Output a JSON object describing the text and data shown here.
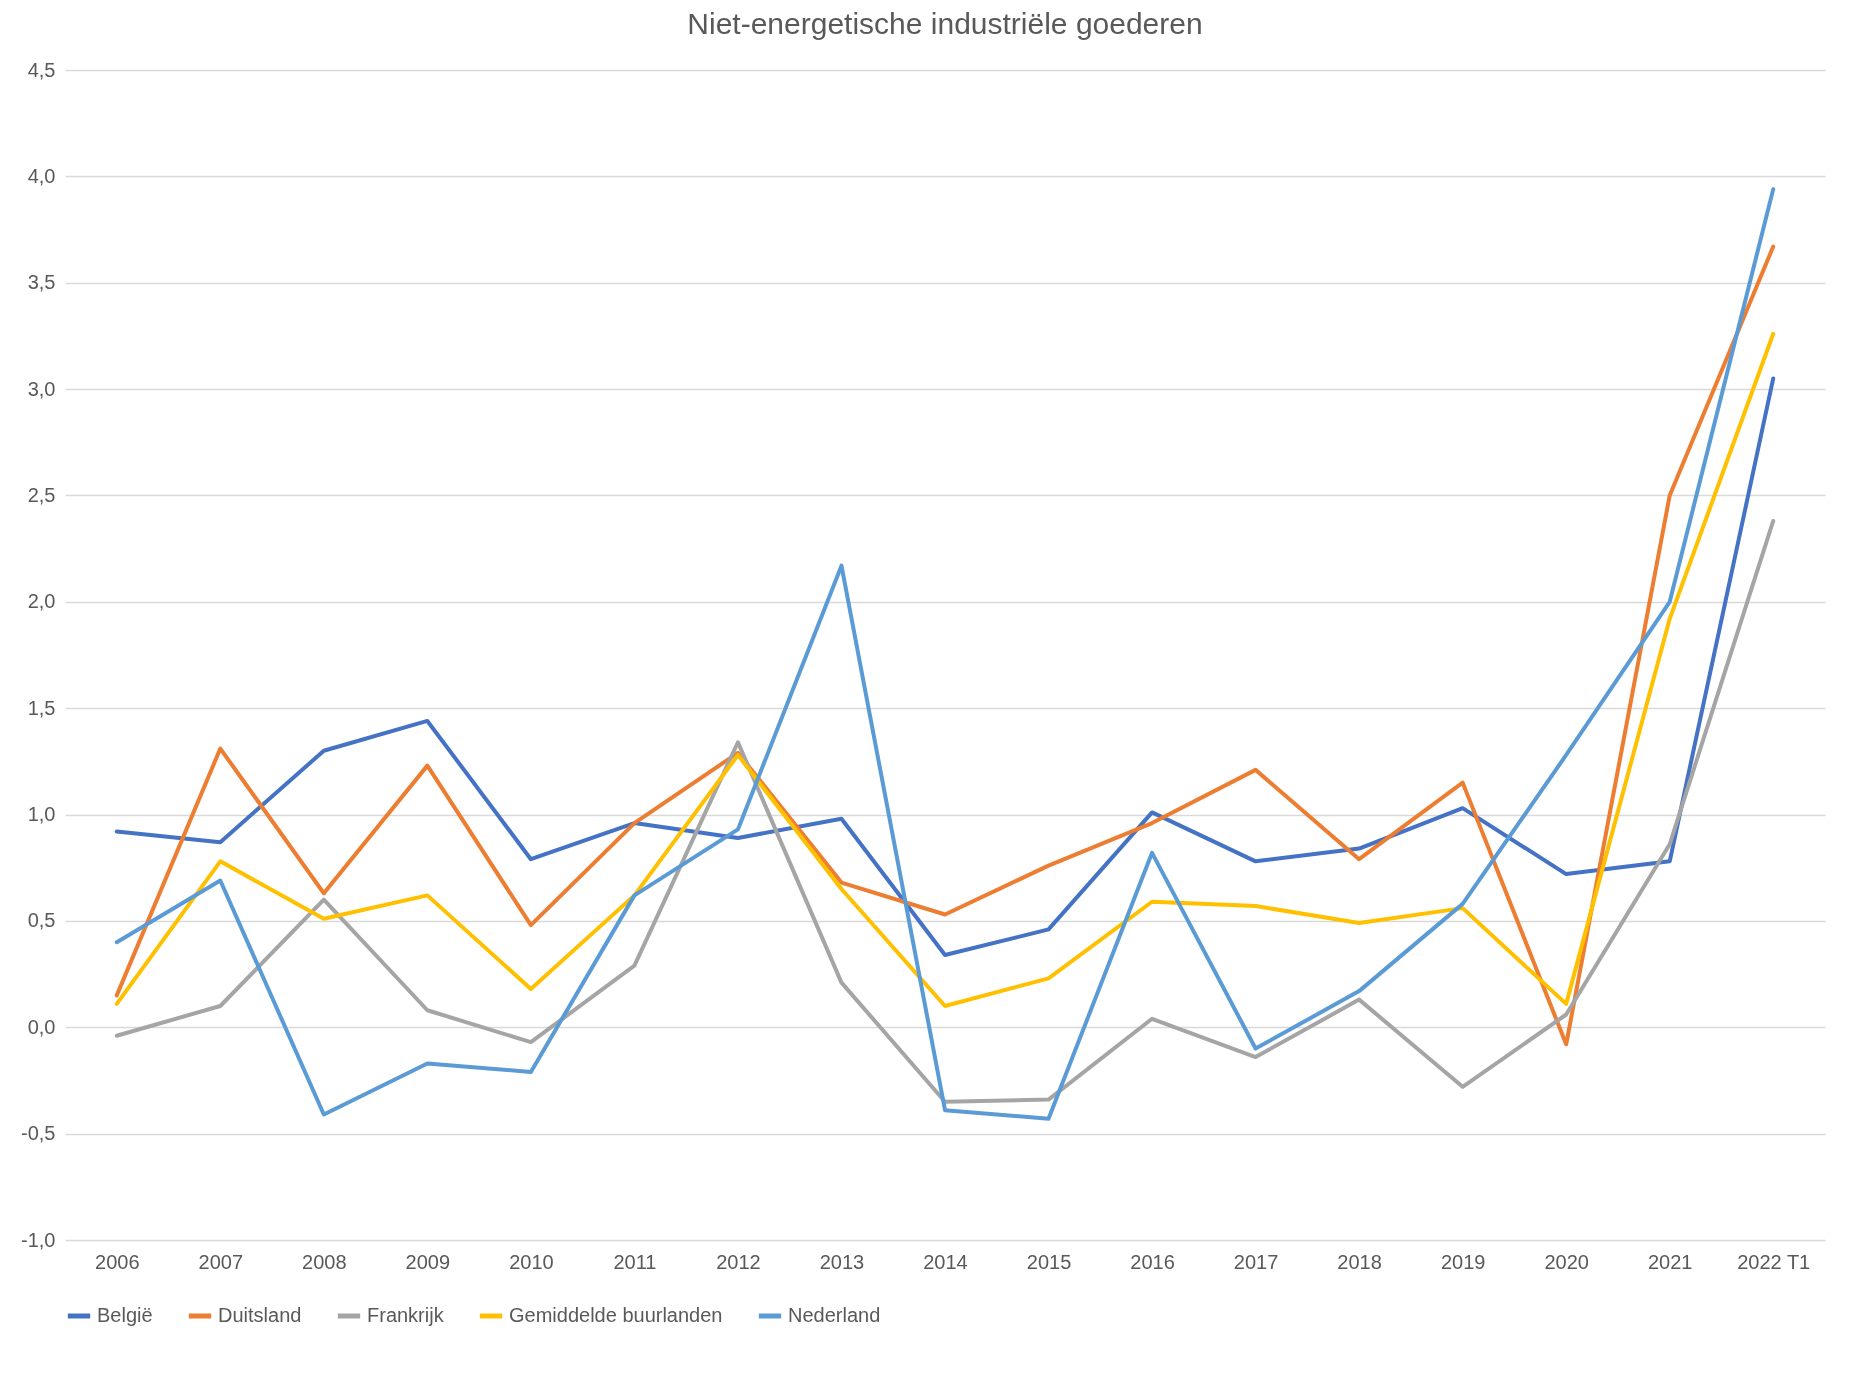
{
  "chart_data": {
    "type": "line",
    "title": "Niet-energetische industriële goederen",
    "categories": [
      "2006",
      "2007",
      "2008",
      "2009",
      "2010",
      "2011",
      "2012",
      "2013",
      "2014",
      "2015",
      "2016",
      "2017",
      "2018",
      "2019",
      "2020",
      "2021",
      "2022 T1"
    ],
    "series": [
      {
        "name": "België",
        "color": "#4472c4",
        "values": [
          0.92,
          0.87,
          1.3,
          1.44,
          0.79,
          0.96,
          0.89,
          0.98,
          0.34,
          0.46,
          1.01,
          0.78,
          0.84,
          1.03,
          0.72,
          0.78,
          3.05
        ]
      },
      {
        "name": "Duitsland",
        "color": "#ed7d31",
        "values": [
          0.15,
          1.31,
          0.63,
          1.23,
          0.48,
          0.96,
          1.29,
          0.68,
          0.53,
          0.76,
          0.96,
          1.21,
          0.79,
          1.15,
          -0.08,
          2.5,
          3.67
        ]
      },
      {
        "name": "Frankrijk",
        "color": "#a5a5a5",
        "values": [
          -0.04,
          0.1,
          0.6,
          0.08,
          -0.07,
          0.29,
          1.34,
          0.21,
          -0.35,
          -0.34,
          0.04,
          -0.14,
          0.13,
          -0.28,
          0.06,
          0.86,
          2.38
        ]
      },
      {
        "name": "Gemiddelde buurlanden",
        "color": "#ffc000",
        "values": [
          0.11,
          0.78,
          0.51,
          0.62,
          0.18,
          0.62,
          1.28,
          0.65,
          0.1,
          0.23,
          0.59,
          0.57,
          0.49,
          0.56,
          0.11,
          1.92,
          3.26
        ]
      },
      {
        "name": "Nederland",
        "color": "#5b9bd5",
        "values": [
          0.4,
          0.69,
          -0.41,
          -0.17,
          -0.21,
          0.62,
          0.93,
          2.17,
          -0.39,
          -0.43,
          0.82,
          -0.1,
          0.17,
          0.58,
          1.28,
          2.0,
          3.94
        ]
      }
    ],
    "ylim": [
      -1,
      4.5
    ],
    "yticks": [
      {
        "value": -1,
        "label": "-1,0"
      },
      {
        "value": -0.5,
        "label": "-0,5"
      },
      {
        "value": 0,
        "label": "0,0"
      },
      {
        "value": 0.5,
        "label": "0,5"
      },
      {
        "value": 1,
        "label": "1,0"
      },
      {
        "value": 1.5,
        "label": "1,5"
      },
      {
        "value": 2,
        "label": "2,0"
      },
      {
        "value": 2.5,
        "label": "2,5"
      },
      {
        "value": 3,
        "label": "3,0"
      },
      {
        "value": 3.5,
        "label": "3,5"
      },
      {
        "value": 4,
        "label": "4,0"
      },
      {
        "value": 4.5,
        "label": "4,5"
      }
    ],
    "grid": "y",
    "legend": "bottom",
    "marker": "none",
    "line_style": "solid"
  }
}
